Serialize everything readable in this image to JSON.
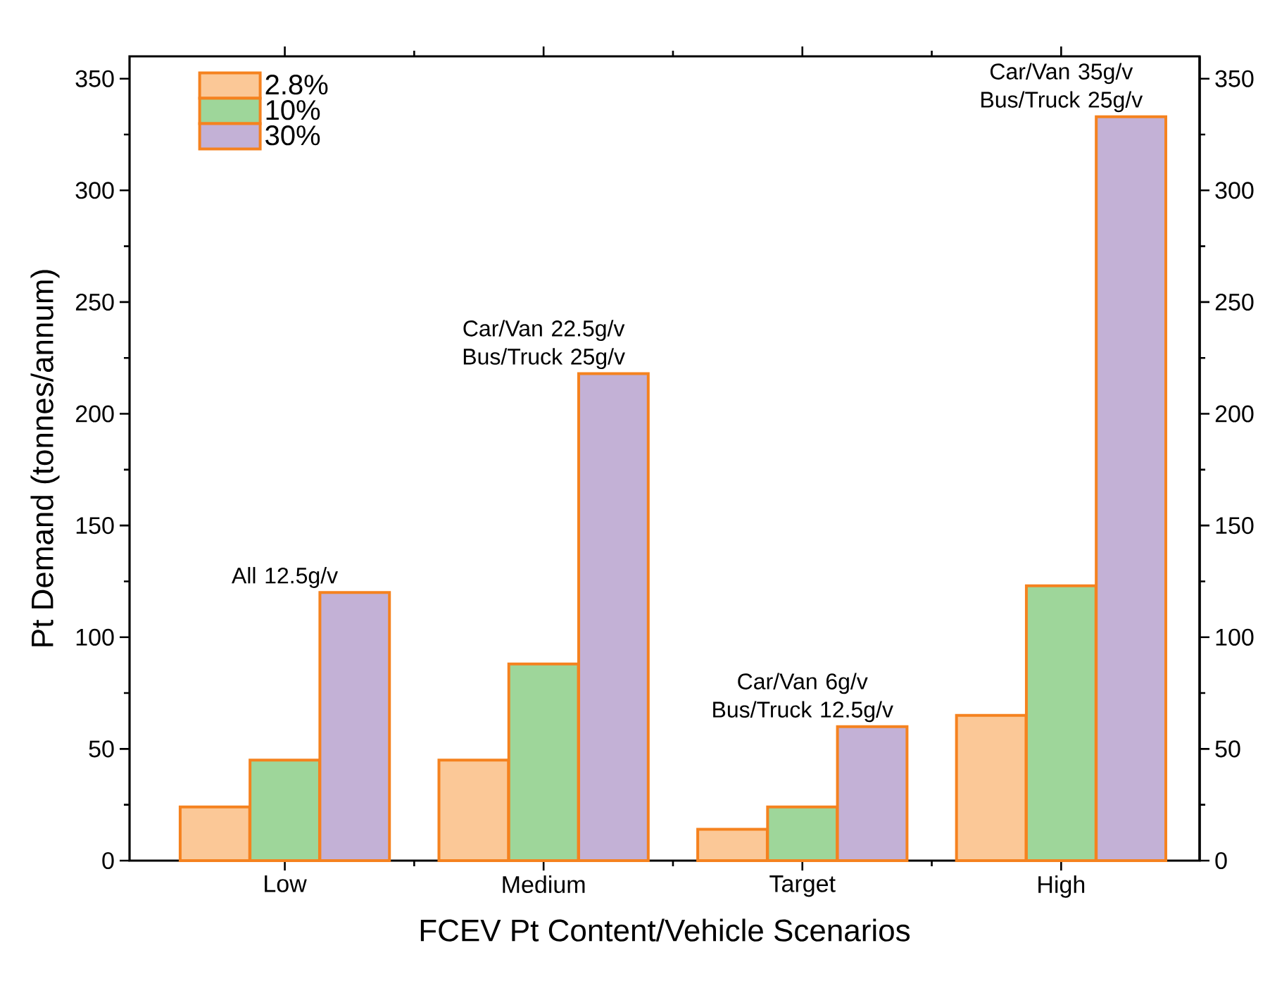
{
  "chart_data": {
    "type": "bar",
    "xlabel": "FCEV Pt Content/Vehicle Scenarios",
    "ylabel": "Pt Demand (tonnes/annum)",
    "categories": [
      "Low",
      "Medium",
      "Target",
      "High"
    ],
    "series": [
      {
        "name": "2.8%",
        "color": "#fbc897",
        "values": [
          24,
          45,
          14,
          65
        ]
      },
      {
        "name": "10%",
        "color": "#9ed69a",
        "values": [
          45,
          88,
          24,
          123
        ]
      },
      {
        "name": "30%",
        "color": "#c3b1d6",
        "values": [
          120,
          218,
          60,
          333
        ]
      }
    ],
    "ylim": [
      0,
      360
    ],
    "yticks": [
      0,
      50,
      100,
      150,
      200,
      250,
      300,
      350
    ],
    "y2lim": [
      0,
      360
    ],
    "y2ticks": [
      0,
      50,
      100,
      150,
      200,
      250,
      300,
      350
    ],
    "legend": "top left",
    "grid": false,
    "annotations": [
      "All 12.5g/v",
      "Car/Van 22.5g/v Bus/Truck 25g/v",
      "Car/Van 6g/v Bus/Truck 12.5g/v",
      "Car/Van 35g/v Bus/Truck 25g/v"
    ]
  }
}
